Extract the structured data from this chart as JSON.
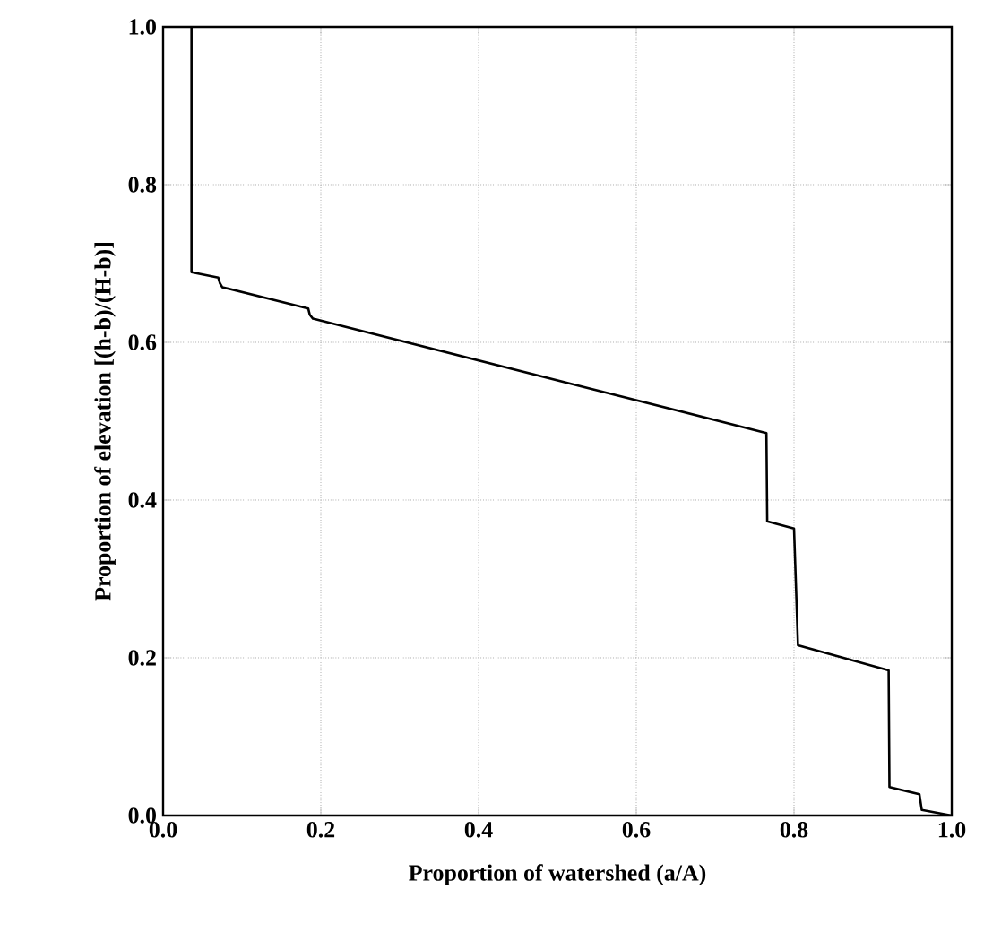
{
  "chart_data": {
    "type": "line",
    "xlabel": "Proportion of watershed (a/A)",
    "ylabel": "Proportion of elevation [(h-b)/(H-b)]",
    "xlim": [
      0,
      1
    ],
    "ylim": [
      0,
      1
    ],
    "xticks": [
      {
        "value": 0,
        "label": "0.0"
      },
      0.2,
      0.4,
      0.6,
      0.8,
      {
        "value": 1,
        "label": "1.0"
      }
    ],
    "yticks": [
      {
        "value": 0,
        "label": "0.0"
      },
      0.2,
      0.4,
      0.6,
      0.8,
      {
        "value": 1,
        "label": "1.0"
      }
    ],
    "grid": true,
    "marker": "none",
    "line_style": "solid",
    "series": [
      {
        "color": "#000000",
        "x": [
          0.036,
          0.036,
          0.07,
          0.072,
          0.075,
          0.184,
          0.186,
          0.19,
          0.543,
          0.765,
          0.766,
          0.8,
          0.805,
          0.92,
          0.921,
          0.959,
          0.962,
          1.0
        ],
        "values": [
          1.0,
          0.689,
          0.682,
          0.675,
          0.67,
          0.643,
          0.635,
          0.63,
          0.541,
          0.485,
          0.373,
          0.364,
          0.216,
          0.184,
          0.036,
          0.027,
          0.007,
          0.0
        ]
      }
    ]
  }
}
